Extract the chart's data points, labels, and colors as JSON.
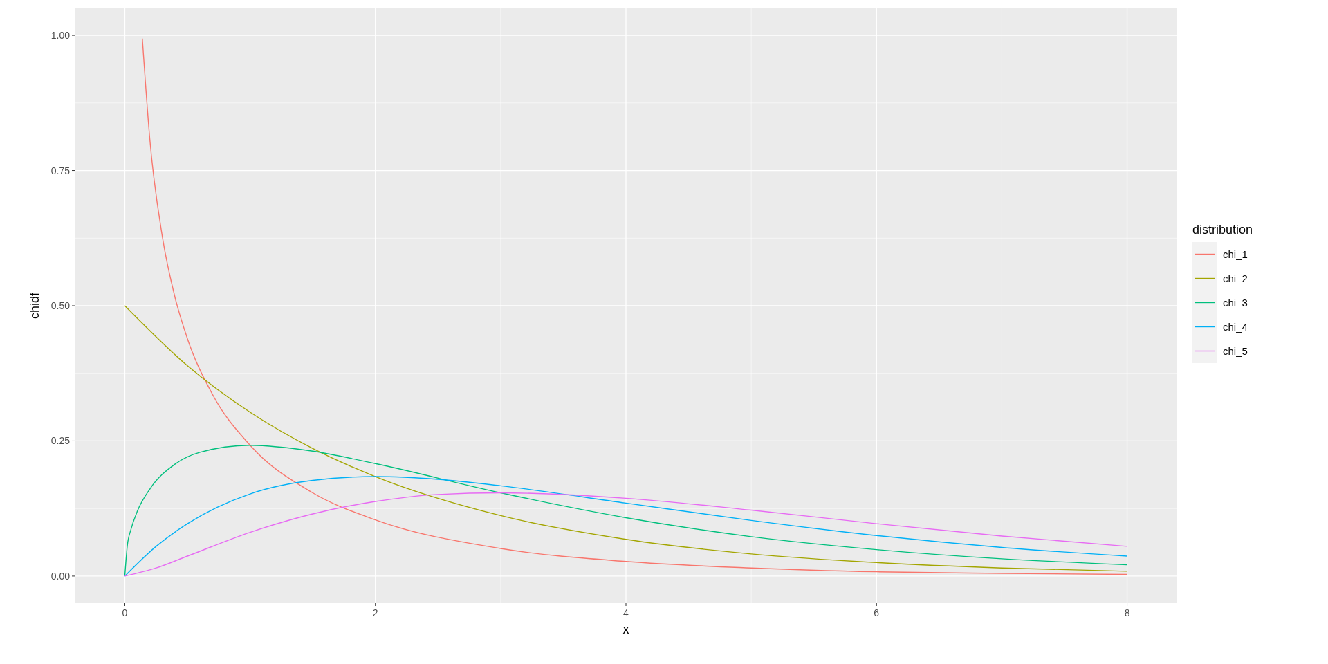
{
  "chart_data": {
    "type": "line",
    "xlabel": "x",
    "ylabel": "chidf",
    "legend_title": "distribution",
    "legend": "right",
    "grid": true,
    "xlim": [
      -0.4,
      8.4
    ],
    "xticks": [
      0,
      2,
      4,
      6,
      8
    ],
    "ylim": [
      -0.05,
      1.05
    ],
    "yticks": [
      {
        "value": 0,
        "label": "0.00"
      },
      {
        "value": 0.25,
        "label": "0.25"
      },
      {
        "value": 0.5,
        "label": "0.50"
      },
      {
        "value": 0.75,
        "label": "0.75"
      },
      {
        "value": 1,
        "label": "1.00"
      }
    ],
    "series": [
      {
        "name": "chi_1",
        "color": "#f8766d",
        "x": [
          0.14,
          0.2,
          0.3,
          0.4,
          0.5,
          0.7,
          1,
          1.5,
          2,
          3,
          4,
          5,
          6,
          7,
          8
        ],
        "values": [
          0.994,
          0.807,
          0.627,
          0.516,
          0.439,
          0.336,
          0.242,
          0.154,
          0.104,
          0.051,
          0.027,
          0.015,
          0.008,
          0.005,
          0.003
        ]
      },
      {
        "name": "chi_2",
        "color": "#a3a500",
        "x": [
          0,
          0.5,
          1,
          1.5,
          2,
          3,
          4,
          5,
          6,
          7,
          8
        ],
        "values": [
          0.5,
          0.389,
          0.303,
          0.236,
          0.184,
          0.112,
          0.068,
          0.041,
          0.025,
          0.015,
          0.009
        ]
      },
      {
        "name": "chi_3",
        "color": "#00bf7d",
        "x": [
          0,
          0.02,
          0.05,
          0.1,
          0.2,
          0.4,
          0.6,
          1,
          1.5,
          2,
          3,
          4,
          5,
          6,
          7,
          8
        ],
        "values": [
          0,
          0.056,
          0.087,
          0.12,
          0.161,
          0.207,
          0.229,
          0.242,
          0.231,
          0.208,
          0.154,
          0.108,
          0.073,
          0.049,
          0.032,
          0.021
        ]
      },
      {
        "name": "chi_4",
        "color": "#00b0f6",
        "x": [
          0,
          0.25,
          0.5,
          1,
          1.5,
          2,
          2.5,
          3,
          4,
          5,
          6,
          7,
          8
        ],
        "values": [
          0,
          0.055,
          0.097,
          0.152,
          0.177,
          0.184,
          0.179,
          0.167,
          0.135,
          0.103,
          0.075,
          0.053,
          0.037
        ]
      },
      {
        "name": "chi_5",
        "color": "#e76bf3",
        "x": [
          0,
          0.25,
          0.5,
          1,
          1.5,
          2,
          2.5,
          3,
          4,
          5,
          6,
          7,
          8
        ],
        "values": [
          0,
          0.015,
          0.037,
          0.081,
          0.115,
          0.138,
          0.151,
          0.154,
          0.144,
          0.122,
          0.097,
          0.074,
          0.055
        ]
      }
    ]
  }
}
